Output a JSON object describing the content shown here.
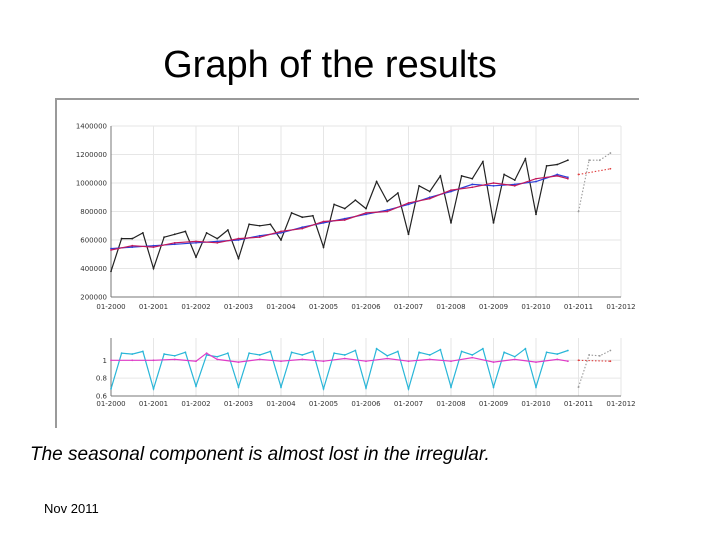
{
  "slide": {
    "title": "Graph of the results",
    "caption": "The seasonal component is almost lost in the irregular.",
    "footer": "Nov 2011"
  },
  "chart_data": [
    {
      "type": "line",
      "title": "",
      "xlabel": "",
      "ylabel": "",
      "x_ticks": [
        "01-2000",
        "01-2001",
        "01-2002",
        "01-2003",
        "01-2004",
        "01-2005",
        "01-2006",
        "01-2007",
        "01-2008",
        "01-2009",
        "01-2010",
        "01-2011",
        "01-2012"
      ],
      "y_ticks": [
        "200000",
        "400000",
        "600000",
        "800000",
        "1000000",
        "1200000",
        "1400000"
      ],
      "ylim": [
        200000,
        1400000
      ],
      "xlim": [
        2000.0,
        2012.0
      ],
      "grid": true,
      "series": [
        {
          "color": "#222222",
          "style": "solid",
          "x": [
            2000.0,
            2000.25,
            2000.5,
            2000.75,
            2001.0,
            2001.25,
            2001.5,
            2001.75,
            2002.0,
            2002.25,
            2002.5,
            2002.75,
            2003.0,
            2003.25,
            2003.5,
            2003.75,
            2004.0,
            2004.25,
            2004.5,
            2004.75,
            2005.0,
            2005.25,
            2005.5,
            2005.75,
            2006.0,
            2006.25,
            2006.5,
            2006.75,
            2007.0,
            2007.25,
            2007.5,
            2007.75,
            2008.0,
            2008.25,
            2008.5,
            2008.75,
            2009.0,
            2009.25,
            2009.5,
            2009.75,
            2010.0,
            2010.25,
            2010.5,
            2010.75
          ],
          "values": [
            380000,
            610000,
            610000,
            650000,
            400000,
            620000,
            640000,
            660000,
            480000,
            650000,
            610000,
            670000,
            470000,
            710000,
            700000,
            710000,
            600000,
            790000,
            760000,
            770000,
            550000,
            850000,
            820000,
            880000,
            820000,
            1010000,
            870000,
            930000,
            640000,
            980000,
            940000,
            1050000,
            720000,
            1050000,
            1030000,
            1150000,
            720000,
            1060000,
            1020000,
            1170000,
            780000,
            1120000,
            1130000,
            1160000
          ]
        },
        {
          "color": "#2b3fd8",
          "style": "solid",
          "x": [
            2000.0,
            2000.5,
            2001.0,
            2001.5,
            2002.0,
            2002.5,
            2003.0,
            2003.5,
            2004.0,
            2004.5,
            2005.0,
            2005.5,
            2006.0,
            2006.5,
            2007.0,
            2007.5,
            2008.0,
            2008.5,
            2009.0,
            2009.5,
            2010.0,
            2010.5,
            2010.75
          ],
          "values": [
            540000,
            550000,
            560000,
            570000,
            580000,
            590000,
            600000,
            630000,
            650000,
            690000,
            720000,
            750000,
            780000,
            810000,
            850000,
            900000,
            940000,
            990000,
            980000,
            990000,
            1010000,
            1060000,
            1040000
          ]
        },
        {
          "color": "#c2185b",
          "style": "solid",
          "x": [
            2000.0,
            2000.5,
            2001.0,
            2001.5,
            2002.0,
            2002.5,
            2003.0,
            2003.5,
            2004.0,
            2004.5,
            2005.0,
            2005.5,
            2006.0,
            2006.5,
            2007.0,
            2007.5,
            2008.0,
            2008.5,
            2009.0,
            2009.5,
            2010.0,
            2010.5,
            2010.75
          ],
          "values": [
            530000,
            560000,
            550000,
            580000,
            590000,
            580000,
            610000,
            620000,
            660000,
            680000,
            730000,
            740000,
            790000,
            800000,
            860000,
            890000,
            950000,
            970000,
            1000000,
            980000,
            1030000,
            1050000,
            1030000
          ]
        },
        {
          "color": "#999999",
          "style": "dotted",
          "x": [
            2011.0,
            2011.25,
            2011.5,
            2011.75
          ],
          "values": [
            800000,
            1160000,
            1160000,
            1210000
          ]
        },
        {
          "color": "#e04040",
          "style": "dotted",
          "x": [
            2011.0,
            2011.75
          ],
          "values": [
            1060000,
            1100000
          ]
        }
      ]
    },
    {
      "type": "line",
      "title": "",
      "xlabel": "",
      "ylabel": "",
      "x_ticks": [
        "01-2000",
        "01-2001",
        "01-2002",
        "01-2003",
        "01-2004",
        "01-2005",
        "01-2006",
        "01-2007",
        "01-2008",
        "01-2009",
        "01-2010",
        "01-2011",
        "01-2012"
      ],
      "y_ticks": [
        "0.6",
        "0.8",
        "1"
      ],
      "ylim": [
        0.6,
        1.25
      ],
      "xlim": [
        2000.0,
        2012.0
      ],
      "grid": true,
      "series": [
        {
          "color": "#29b6d8",
          "style": "solid",
          "x": [
            2000.0,
            2000.25,
            2000.5,
            2000.75,
            2001.0,
            2001.25,
            2001.5,
            2001.75,
            2002.0,
            2002.25,
            2002.5,
            2002.75,
            2003.0,
            2003.25,
            2003.5,
            2003.75,
            2004.0,
            2004.25,
            2004.5,
            2004.75,
            2005.0,
            2005.25,
            2005.5,
            2005.75,
            2006.0,
            2006.25,
            2006.5,
            2006.75,
            2007.0,
            2007.25,
            2007.5,
            2007.75,
            2008.0,
            2008.25,
            2008.5,
            2008.75,
            2009.0,
            2009.25,
            2009.5,
            2009.75,
            2010.0,
            2010.25,
            2010.5,
            2010.75
          ],
          "values": [
            0.68,
            1.08,
            1.07,
            1.1,
            0.68,
            1.07,
            1.05,
            1.09,
            0.71,
            1.06,
            1.04,
            1.08,
            0.7,
            1.08,
            1.06,
            1.1,
            0.7,
            1.09,
            1.06,
            1.1,
            0.68,
            1.08,
            1.06,
            1.11,
            0.69,
            1.13,
            1.05,
            1.1,
            0.68,
            1.09,
            1.06,
            1.12,
            0.7,
            1.1,
            1.06,
            1.13,
            0.7,
            1.09,
            1.04,
            1.13,
            0.7,
            1.09,
            1.07,
            1.11
          ]
        },
        {
          "color": "#e03cc8",
          "style": "solid",
          "x": [
            2000.0,
            2000.5,
            2001.0,
            2001.5,
            2002.0,
            2002.25,
            2002.5,
            2003.0,
            2003.5,
            2004.0,
            2004.5,
            2005.0,
            2005.5,
            2006.0,
            2006.5,
            2007.0,
            2007.5,
            2008.0,
            2008.5,
            2009.0,
            2009.5,
            2010.0,
            2010.5,
            2010.75
          ],
          "values": [
            1.0,
            1.0,
            1.0,
            1.01,
            0.99,
            1.08,
            1.01,
            0.98,
            1.01,
            0.99,
            1.01,
            0.99,
            1.02,
            0.99,
            1.02,
            0.99,
            1.01,
            0.99,
            1.03,
            0.98,
            1.01,
            0.98,
            1.01,
            0.99
          ]
        },
        {
          "color": "#999999",
          "style": "dotted",
          "x": [
            2011.0,
            2011.25,
            2011.5,
            2011.75
          ],
          "values": [
            0.7,
            1.06,
            1.05,
            1.11
          ]
        },
        {
          "color": "#e04040",
          "style": "dotted",
          "x": [
            2011.0,
            2011.75
          ],
          "values": [
            1.0,
            0.99
          ]
        }
      ]
    }
  ]
}
